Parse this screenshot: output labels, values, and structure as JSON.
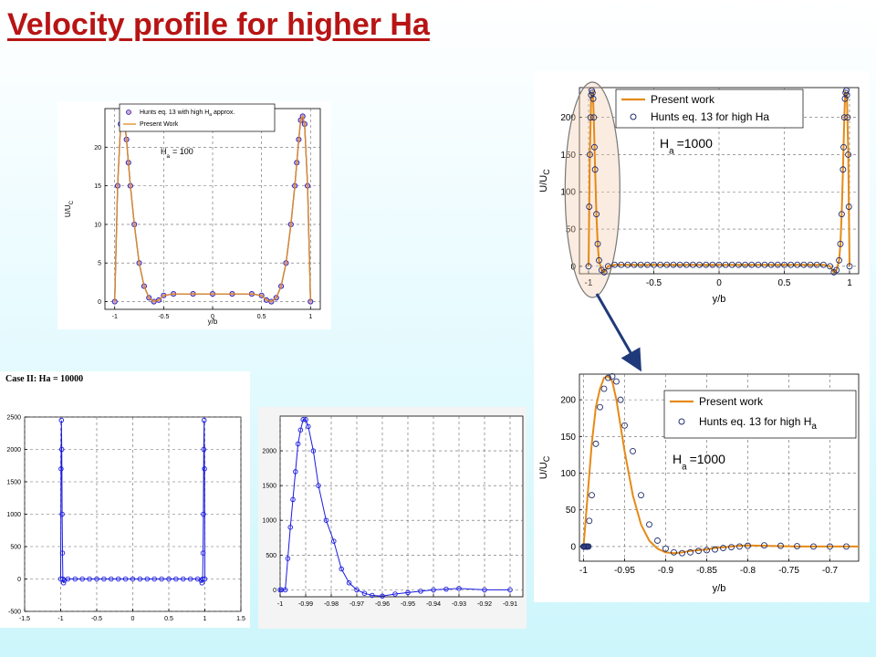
{
  "slide": {
    "title": "Velocity profile for higher Ha"
  },
  "chart_data": [
    {
      "id": "ha100",
      "type": "line",
      "legend": [
        "Hunts eq. 13 with high H",
        "a",
        " approx.",
        "Present Work"
      ],
      "legend_position": "top-right",
      "annotation": {
        "main": "H",
        "sub": "a",
        "tail": "= 100"
      },
      "xlabel": "y/b",
      "ylabel": {
        "main": "U/U",
        "sub": "C"
      },
      "xlim": [
        -1.1,
        1.1
      ],
      "ylim": [
        -1,
        25
      ],
      "xticks": [
        -1,
        -0.5,
        0,
        0.5,
        1
      ],
      "xticklabels": [
        "-1",
        "-0.5",
        "0",
        "0.5",
        "1"
      ],
      "yticks": [
        0,
        5,
        10,
        15,
        20
      ],
      "yticklabels": [
        "0",
        "5",
        "10",
        "15",
        "20"
      ],
      "grid": true,
      "series": [
        {
          "marker": "circle",
          "color": "#2020c0",
          "x": [
            -1,
            -0.97,
            -0.94,
            -0.92,
            -0.9,
            -0.88,
            -0.86,
            -0.84,
            -0.8,
            -0.75,
            -0.7,
            -0.65,
            -0.6,
            -0.55,
            -0.5,
            -0.4,
            -0.2,
            0,
            0.2,
            0.4,
            0.5,
            0.55,
            0.6,
            0.65,
            0.7,
            0.75,
            0.8,
            0.84,
            0.86,
            0.88,
            0.9,
            0.92,
            0.94,
            0.97,
            1
          ],
          "y": [
            0,
            15,
            23,
            24,
            23.5,
            21,
            18,
            15,
            10,
            5,
            2,
            0.5,
            0,
            0.2,
            0.8,
            1,
            1,
            1,
            1,
            1,
            0.8,
            0.2,
            0,
            0.5,
            2,
            5,
            10,
            15,
            18,
            21,
            23.5,
            24,
            23,
            15,
            0
          ]
        },
        {
          "marker": "none",
          "color": "#e08a1e",
          "x": [
            -1,
            -0.97,
            -0.94,
            -0.92,
            -0.9,
            -0.88,
            -0.86,
            -0.84,
            -0.8,
            -0.75,
            -0.7,
            -0.65,
            -0.6,
            -0.55,
            -0.5,
            -0.4,
            -0.2,
            0,
            0.2,
            0.4,
            0.5,
            0.55,
            0.6,
            0.65,
            0.7,
            0.75,
            0.8,
            0.84,
            0.86,
            0.88,
            0.9,
            0.92,
            0.94,
            0.97,
            1
          ],
          "y": [
            0,
            15,
            23,
            24,
            23.5,
            21,
            18,
            15,
            10,
            5,
            2,
            0.5,
            0,
            0.2,
            0.8,
            1,
            1,
            1,
            1,
            1,
            0.8,
            0.2,
            0,
            0.5,
            2,
            5,
            10,
            15,
            18,
            21,
            23.5,
            24,
            23,
            15,
            0
          ]
        }
      ]
    },
    {
      "id": "ha10000",
      "type": "line",
      "title": "Case II: Ha = 10000",
      "xlim": [
        -1.5,
        1.5
      ],
      "ylim": [
        -500,
        2500
      ],
      "xticks": [
        -1.5,
        -1,
        -0.5,
        0,
        0.5,
        1,
        1.5
      ],
      "xticklabels": [
        "-1.5",
        "-1",
        "-0.5",
        "0",
        "0.5",
        "1",
        "1.5"
      ],
      "yticks": [
        -500,
        0,
        500,
        1000,
        1500,
        2000,
        2500
      ],
      "yticklabels": [
        "-500",
        "0",
        "500",
        "1000",
        "1500",
        "2000",
        "2500"
      ],
      "grid": true,
      "series": [
        {
          "marker": "circle",
          "color": "#1a1ae0",
          "x": [
            -1,
            -0.995,
            -0.99,
            -0.985,
            -0.98,
            -0.975,
            -0.97,
            -0.96,
            -0.95,
            -0.9,
            -0.8,
            -0.7,
            -0.6,
            -0.5,
            -0.4,
            -0.3,
            -0.2,
            -0.1,
            0,
            0.1,
            0.2,
            0.3,
            0.4,
            0.5,
            0.6,
            0.7,
            0.8,
            0.9,
            0.95,
            0.96,
            0.97,
            0.975,
            0.98,
            0.985,
            0.99,
            0.995,
            1
          ],
          "y": [
            0,
            1700,
            2450,
            2000,
            1000,
            400,
            0,
            -60,
            -20,
            0,
            0,
            0,
            0,
            0,
            0,
            0,
            0,
            0,
            0,
            0,
            0,
            0,
            0,
            0,
            0,
            0,
            0,
            0,
            -20,
            -60,
            0,
            400,
            1000,
            2000,
            2450,
            1700,
            0
          ]
        }
      ]
    },
    {
      "id": "ha10000-zoom",
      "type": "line",
      "xlim": [
        -1.0,
        -0.905
      ],
      "ylim": [
        -100,
        2500
      ],
      "xticks": [
        -1,
        -0.99,
        -0.98,
        -0.97,
        -0.96,
        -0.95,
        -0.94,
        -0.93,
        -0.92,
        -0.91
      ],
      "xticklabels": [
        "-1",
        "-0.99",
        "-0.98",
        "-0.97",
        "-0.96",
        "-0.95",
        "-0.94",
        "-0.93",
        "-0.92",
        "-0.91"
      ],
      "yticks": [
        0,
        500,
        1000,
        1500,
        2000
      ],
      "yticklabels": [
        "0",
        "500",
        "1000",
        "1500",
        "2000"
      ],
      "grid": true,
      "series": [
        {
          "marker": "circle",
          "color": "#1a1ae0",
          "x": [
            -1,
            -0.9995,
            -0.998,
            -0.997,
            -0.996,
            -0.995,
            -0.994,
            -0.993,
            -0.992,
            -0.991,
            -0.99,
            -0.989,
            -0.987,
            -0.985,
            -0.982,
            -0.979,
            -0.976,
            -0.973,
            -0.97,
            -0.967,
            -0.964,
            -0.96,
            -0.955,
            -0.95,
            -0.945,
            -0.94,
            -0.935,
            -0.93,
            -0.92,
            -0.91
          ],
          "y": [
            0,
            0,
            0,
            450,
            900,
            1300,
            1700,
            2100,
            2300,
            2450,
            2450,
            2350,
            2000,
            1500,
            1000,
            700,
            300,
            100,
            0,
            -50,
            -80,
            -90,
            -60,
            -40,
            -20,
            0,
            10,
            20,
            0,
            0
          ]
        }
      ]
    },
    {
      "id": "ha1000",
      "type": "line",
      "legend": [
        "Present work",
        "Hunts eq. 13 for high Ha"
      ],
      "legend_position": "top-left",
      "annotation": {
        "main": "H",
        "sub": "a",
        "tail": "=1000"
      },
      "xlabel": "y/b",
      "ylabel": {
        "main": "U/U",
        "sub": "C"
      },
      "xlim": [
        -1.07,
        1.07
      ],
      "ylim": [
        -10,
        240
      ],
      "xticks": [
        -1,
        -0.5,
        0,
        0.5,
        1
      ],
      "xticklabels": [
        "-1",
        "-0.5",
        "0",
        "0.5",
        "1"
      ],
      "yticks": [
        0,
        50,
        100,
        150,
        200
      ],
      "yticklabels": [
        "0",
        "50",
        "100",
        "150",
        "200"
      ],
      "grid": true,
      "series": [
        {
          "name": "Present work",
          "marker": "none",
          "color": "#e58a16",
          "x": [
            -1,
            -0.99,
            -0.98,
            -0.97,
            -0.965,
            -0.96,
            -0.95,
            -0.94,
            -0.93,
            -0.92,
            -0.9,
            -0.88,
            -0.85,
            -0.8,
            -0.5,
            0,
            0.5,
            0.8,
            0.85,
            0.88,
            0.9,
            0.92,
            0.93,
            0.94,
            0.95,
            0.96,
            0.965,
            0.97,
            0.98,
            0.99,
            1
          ],
          "y": [
            0,
            150,
            230,
            233,
            225,
            200,
            130,
            70,
            30,
            8,
            -5,
            -8,
            0,
            2,
            2,
            2,
            2,
            2,
            0,
            -8,
            -5,
            8,
            30,
            70,
            130,
            200,
            225,
            233,
            230,
            150,
            0
          ]
        },
        {
          "name": "Hunts eq. 13 for high Ha",
          "marker": "circle",
          "color": "#1f2d6e",
          "x": [
            -1,
            -0.995,
            -0.99,
            -0.985,
            -0.98,
            -0.975,
            -0.97,
            -0.965,
            -0.96,
            -0.955,
            -0.95,
            -0.94,
            -0.93,
            -0.92,
            -0.9,
            -0.88,
            -0.85,
            -0.8,
            -0.75,
            -0.7,
            -0.65,
            -0.6,
            -0.55,
            -0.5,
            -0.45,
            -0.4,
            -0.35,
            -0.3,
            -0.25,
            -0.2,
            -0.15,
            -0.1,
            -0.05,
            0,
            0.05,
            0.1,
            0.15,
            0.2,
            0.25,
            0.3,
            0.35,
            0.4,
            0.45,
            0.5,
            0.55,
            0.6,
            0.65,
            0.7,
            0.75,
            0.8,
            0.85,
            0.88,
            0.9,
            0.92,
            0.93,
            0.94,
            0.95,
            0.955,
            0.96,
            0.965,
            0.97,
            0.975,
            0.98,
            0.985,
            0.99,
            0.995,
            1
          ],
          "y": [
            0,
            80,
            150,
            200,
            230,
            236,
            233,
            225,
            200,
            160,
            130,
            70,
            30,
            8,
            -5,
            -8,
            0,
            2,
            2,
            2,
            2,
            2,
            2,
            2,
            2,
            2,
            2,
            2,
            2,
            2,
            2,
            2,
            2,
            2,
            2,
            2,
            2,
            2,
            2,
            2,
            2,
            2,
            2,
            2,
            2,
            2,
            2,
            2,
            2,
            2,
            0,
            -8,
            -5,
            8,
            30,
            70,
            130,
            160,
            200,
            225,
            233,
            236,
            230,
            200,
            150,
            80,
            0
          ]
        }
      ]
    },
    {
      "id": "ha1000-zoom",
      "type": "line",
      "legend": [
        "Present work",
        "Hunts eq. 13 for high H",
        "a"
      ],
      "legend_position": "top-right",
      "annotation": {
        "main": "H",
        "sub": "a",
        "tail": "=1000"
      },
      "xlabel": "y/b",
      "ylabel": {
        "main": "U/U",
        "sub": "C"
      },
      "xlim": [
        -1.005,
        -0.665
      ],
      "ylim": [
        -20,
        235
      ],
      "xticks": [
        -1,
        -0.95,
        -0.9,
        -0.85,
        -0.8,
        -0.75,
        -0.7
      ],
      "xticklabels": [
        "-1",
        "-0.95",
        "-0.9",
        "-0.85",
        "-0.8",
        "-0.75",
        "-0.7"
      ],
      "yticks": [
        0,
        50,
        100,
        150,
        200
      ],
      "yticklabels": [
        "0",
        "50",
        "100",
        "150",
        "200"
      ],
      "grid": true,
      "series": [
        {
          "name": "Present work",
          "marker": "none",
          "color": "#e58a16",
          "x": [
            -1,
            -0.995,
            -0.99,
            -0.985,
            -0.98,
            -0.975,
            -0.97,
            -0.965,
            -0.96,
            -0.955,
            -0.95,
            -0.94,
            -0.93,
            -0.92,
            -0.91,
            -0.9,
            -0.89,
            -0.88,
            -0.87,
            -0.86,
            -0.85,
            -0.84,
            -0.83,
            -0.82,
            -0.81,
            -0.8,
            -0.78,
            -0.76,
            -0.74,
            -0.72,
            -0.7,
            -0.68,
            -0.665
          ],
          "y": [
            0,
            70,
            140,
            190,
            215,
            230,
            232,
            225,
            200,
            165,
            130,
            70,
            30,
            8,
            -3,
            -8,
            -9,
            -8,
            -6,
            -5,
            -4,
            -2,
            -1,
            0,
            1,
            1.5,
            1,
            0.5,
            0,
            0,
            0,
            0,
            0
          ]
        },
        {
          "name": "Hunts eq. 13 for high Ha",
          "marker": "circle",
          "color": "#1f2d6e",
          "x": [
            -1,
            -0.9995,
            -0.999,
            -0.998,
            -0.997,
            -0.996,
            -0.995,
            -0.994,
            -0.993,
            -0.99,
            -0.985,
            -0.98,
            -0.975,
            -0.97,
            -0.965,
            -0.96,
            -0.955,
            -0.95,
            -0.94,
            -0.93,
            -0.92,
            -0.91,
            -0.9,
            -0.89,
            -0.88,
            -0.87,
            -0.86,
            -0.85,
            -0.84,
            -0.83,
            -0.82,
            -0.81,
            -0.8,
            -0.78,
            -0.76,
            -0.74,
            -0.72,
            -0.7,
            -0.68
          ],
          "y": [
            0,
            0,
            0,
            0,
            0,
            0,
            0,
            0,
            35,
            70,
            140,
            190,
            215,
            230,
            232,
            225,
            200,
            165,
            130,
            70,
            30,
            8,
            -3,
            -8,
            -9,
            -8,
            -6,
            -5,
            -4,
            -2,
            -1,
            0,
            1,
            1.5,
            1,
            0.5,
            0,
            0,
            0
          ]
        }
      ]
    }
  ]
}
